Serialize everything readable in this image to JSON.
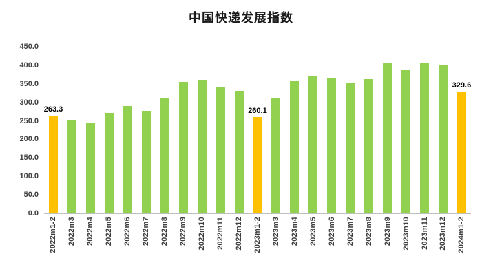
{
  "chart_data": {
    "type": "bar",
    "title": "中国快递发展指数",
    "categories": [
      "2022m1-2",
      "2022m3",
      "2022m4",
      "2022m5",
      "2022m6",
      "2022m7",
      "2022m8",
      "2022m9",
      "2022m10",
      "2022m11",
      "2022m12",
      "2023m1-2",
      "2023m3",
      "2023m4",
      "2023m5",
      "2023m6",
      "2023m7",
      "2023m8",
      "2023m9",
      "2023m10",
      "2023m11",
      "2023m12",
      "2024m1-2"
    ],
    "values": [
      263.3,
      252,
      243,
      271,
      290,
      278,
      313,
      356,
      361,
      341,
      331,
      260.1,
      312,
      357,
      371,
      366,
      354,
      363,
      408,
      388,
      408,
      402,
      329.6
    ],
    "data_labels": [
      "263.3",
      null,
      null,
      null,
      null,
      null,
      null,
      null,
      null,
      null,
      null,
      "260.1",
      null,
      null,
      null,
      null,
      null,
      null,
      null,
      null,
      null,
      null,
      "329.6"
    ],
    "highlight_indices": [
      0,
      11,
      22
    ],
    "bar_color": "#92d050",
    "highlight_color": "#ffc000",
    "xlabel": "",
    "ylabel": "",
    "ylim": [
      0,
      450
    ],
    "yticks": [
      "0.0",
      "50.0",
      "100.0",
      "150.0",
      "200.0",
      "250.0",
      "300.0",
      "350.0",
      "400.0",
      "450.0"
    ],
    "grid": false,
    "legend": "none"
  }
}
